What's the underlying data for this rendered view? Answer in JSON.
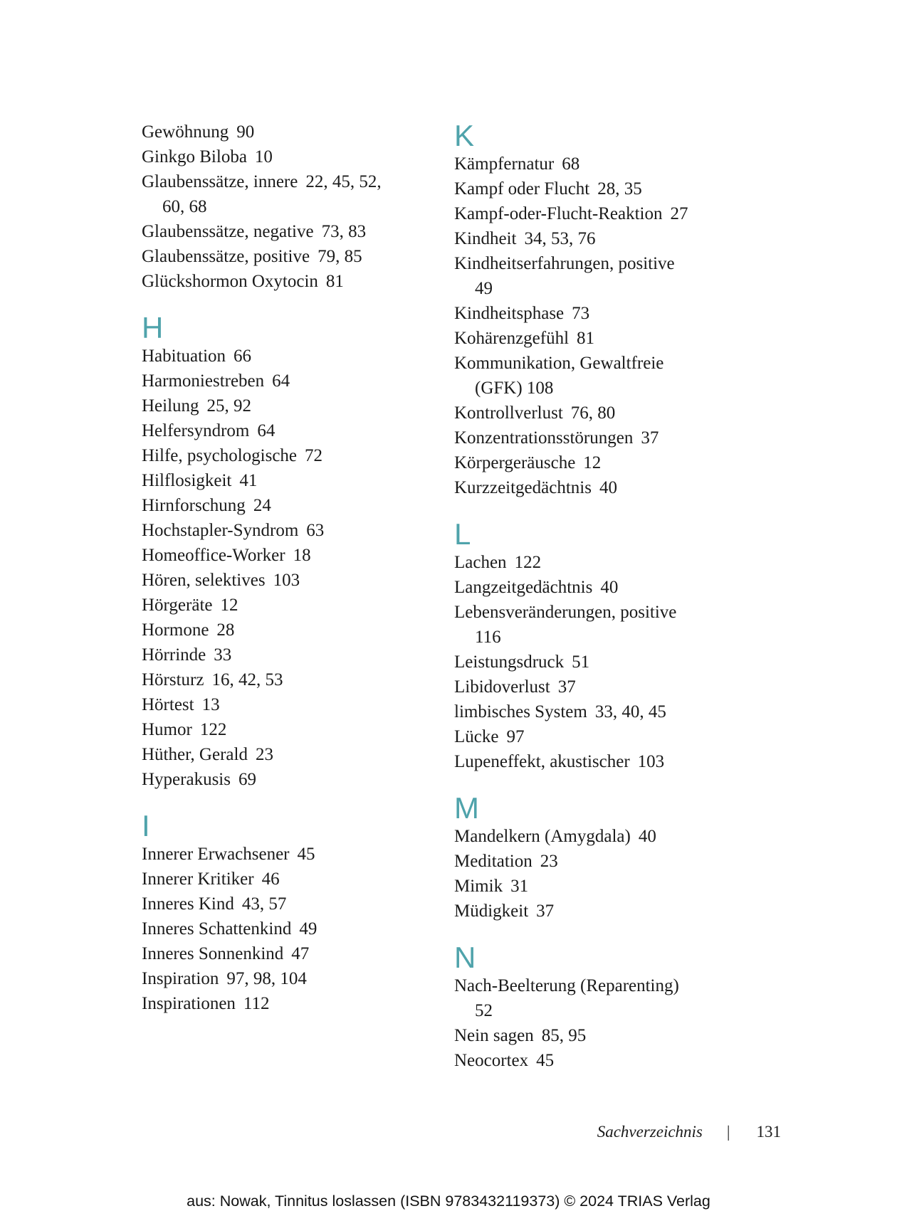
{
  "accent_color": "#4fa3ab",
  "footer": {
    "label": "Sachverzeichnis",
    "separator": "|",
    "page_number": "131"
  },
  "attribution": "aus: Nowak, Tinnitus loslassen (ISBN 9783432119373) © 2024 TRIAS Verlag",
  "index": {
    "columns": [
      {
        "sections": [
          {
            "letter": "",
            "entries": [
              {
                "term": "Gewöhnung",
                "pages": "90"
              },
              {
                "term": "Ginkgo Biloba",
                "pages": "10"
              },
              {
                "term": "Glaubenssätze, innere",
                "pages": "22, 45, 52,",
                "cont": "60, 68"
              },
              {
                "term": "Glaubenssätze, negative",
                "pages": "73, 83"
              },
              {
                "term": "Glaubenssätze, positive",
                "pages": "79, 85"
              },
              {
                "term": "Glückshormon Oxytocin",
                "pages": "81"
              }
            ]
          },
          {
            "letter": "H",
            "entries": [
              {
                "term": "Habituation",
                "pages": "66"
              },
              {
                "term": "Harmoniestreben",
                "pages": "64"
              },
              {
                "term": "Heilung",
                "pages": "25, 92"
              },
              {
                "term": "Helfersyndrom",
                "pages": "64"
              },
              {
                "term": "Hilfe, psychologische",
                "pages": "72"
              },
              {
                "term": "Hilflosigkeit",
                "pages": "41"
              },
              {
                "term": "Hirnforschung",
                "pages": "24"
              },
              {
                "term": "Hochstapler-Syndrom",
                "pages": "63"
              },
              {
                "term": "Homeoffice-Worker",
                "pages": "18"
              },
              {
                "term": "Hören, selektives",
                "pages": "103"
              },
              {
                "term": "Hörgeräte",
                "pages": "12"
              },
              {
                "term": "Hormone",
                "pages": "28"
              },
              {
                "term": "Hörrinde",
                "pages": "33"
              },
              {
                "term": "Hörsturz",
                "pages": "16, 42, 53"
              },
              {
                "term": "Hörtest",
                "pages": "13"
              },
              {
                "term": "Humor",
                "pages": "122"
              },
              {
                "term": "Hüther, Gerald",
                "pages": "23"
              },
              {
                "term": "Hyperakusis",
                "pages": "69"
              }
            ]
          },
          {
            "letter": "I",
            "entries": [
              {
                "term": "Innerer Erwachsener",
                "pages": "45"
              },
              {
                "term": "Innerer Kritiker",
                "pages": "46"
              },
              {
                "term": "Inneres Kind",
                "pages": "43, 57"
              },
              {
                "term": "Inneres Schattenkind",
                "pages": "49"
              },
              {
                "term": "Inneres Sonnenkind",
                "pages": "47"
              },
              {
                "term": "Inspiration",
                "pages": "97, 98, 104"
              },
              {
                "term": "Inspirationen",
                "pages": "112"
              }
            ]
          }
        ]
      },
      {
        "sections": [
          {
            "letter": "K",
            "entries": [
              {
                "term": "Kämpfernatur",
                "pages": "68"
              },
              {
                "term": "Kampf oder Flucht",
                "pages": "28, 35"
              },
              {
                "term": "Kampf-oder-Flucht-Reaktion",
                "pages": "27"
              },
              {
                "term": "Kindheit",
                "pages": "34, 53, 76"
              },
              {
                "term": "Kindheitserfahrungen, positive",
                "pages": "",
                "cont": "49"
              },
              {
                "term": "Kindheitsphase",
                "pages": "73"
              },
              {
                "term": "Kohärenzgefühl",
                "pages": "81"
              },
              {
                "term": "Kommunikation, Gewaltfreie",
                "pages": "",
                "cont": "(GFK) 108"
              },
              {
                "term": "Kontrollverlust",
                "pages": "76, 80"
              },
              {
                "term": "Konzentrationsstörungen",
                "pages": "37"
              },
              {
                "term": "Körpergeräusche",
                "pages": "12"
              },
              {
                "term": "Kurzzeitgedächtnis",
                "pages": "40"
              }
            ]
          },
          {
            "letter": "L",
            "entries": [
              {
                "term": "Lachen",
                "pages": "122"
              },
              {
                "term": "Langzeitgedächtnis",
                "pages": "40"
              },
              {
                "term": "Lebensveränderungen, positive",
                "pages": "",
                "cont": "116"
              },
              {
                "term": "Leistungsdruck",
                "pages": "51"
              },
              {
                "term": "Libidoverlust",
                "pages": "37"
              },
              {
                "term": "limbisches System",
                "pages": "33, 40, 45"
              },
              {
                "term": "Lücke",
                "pages": "97"
              },
              {
                "term": "Lupeneffekt, akustischer",
                "pages": "103"
              }
            ]
          },
          {
            "letter": "M",
            "entries": [
              {
                "term": "Mandelkern (Amygdala)",
                "pages": "40"
              },
              {
                "term": "Meditation",
                "pages": "23"
              },
              {
                "term": "Mimik",
                "pages": "31"
              },
              {
                "term": "Müdigkeit",
                "pages": "37"
              }
            ]
          },
          {
            "letter": "N",
            "entries": [
              {
                "term": "Nach-Beelterung (Reparenting)",
                "pages": "",
                "cont": "52"
              },
              {
                "term": "Nein sagen",
                "pages": "85, 95"
              },
              {
                "term": "Neocortex",
                "pages": "45"
              }
            ]
          }
        ]
      }
    ]
  }
}
